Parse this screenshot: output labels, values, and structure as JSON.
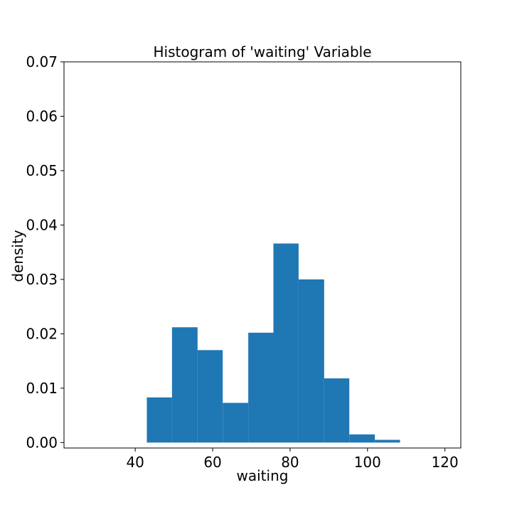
{
  "chart_data": {
    "type": "bar",
    "title": "Histogram of 'waiting' Variable",
    "xlabel": "waiting",
    "ylabel": "density",
    "xlim": [
      21.6,
      124.1
    ],
    "ylim": [
      -0.001,
      0.07
    ],
    "x_ticks": [
      40,
      60,
      80,
      100,
      120
    ],
    "x_tick_labels": [
      "40",
      "60",
      "80",
      "100",
      "120"
    ],
    "y_ticks": [
      0.0,
      0.01,
      0.02,
      0.03,
      0.04,
      0.05,
      0.06,
      0.07
    ],
    "y_tick_labels": [
      "0.00",
      "0.01",
      "0.02",
      "0.03",
      "0.04",
      "0.05",
      "0.06",
      "0.07"
    ],
    "grid": false,
    "bar_color": "#1f77b4",
    "bins": [
      {
        "x0": 43.0,
        "x1": 49.5,
        "density": 0.0083
      },
      {
        "x0": 49.5,
        "x1": 56.1,
        "density": 0.0212
      },
      {
        "x0": 56.1,
        "x1": 62.6,
        "density": 0.017
      },
      {
        "x0": 62.6,
        "x1": 69.2,
        "density": 0.0073
      },
      {
        "x0": 69.2,
        "x1": 75.7,
        "density": 0.0202
      },
      {
        "x0": 75.7,
        "x1": 82.2,
        "density": 0.0366
      },
      {
        "x0": 82.2,
        "x1": 88.8,
        "density": 0.03
      },
      {
        "x0": 88.8,
        "x1": 95.3,
        "density": 0.0118
      },
      {
        "x0": 95.3,
        "x1": 101.9,
        "density": 0.0015
      },
      {
        "x0": 101.9,
        "x1": 108.4,
        "density": 0.0005
      }
    ]
  }
}
